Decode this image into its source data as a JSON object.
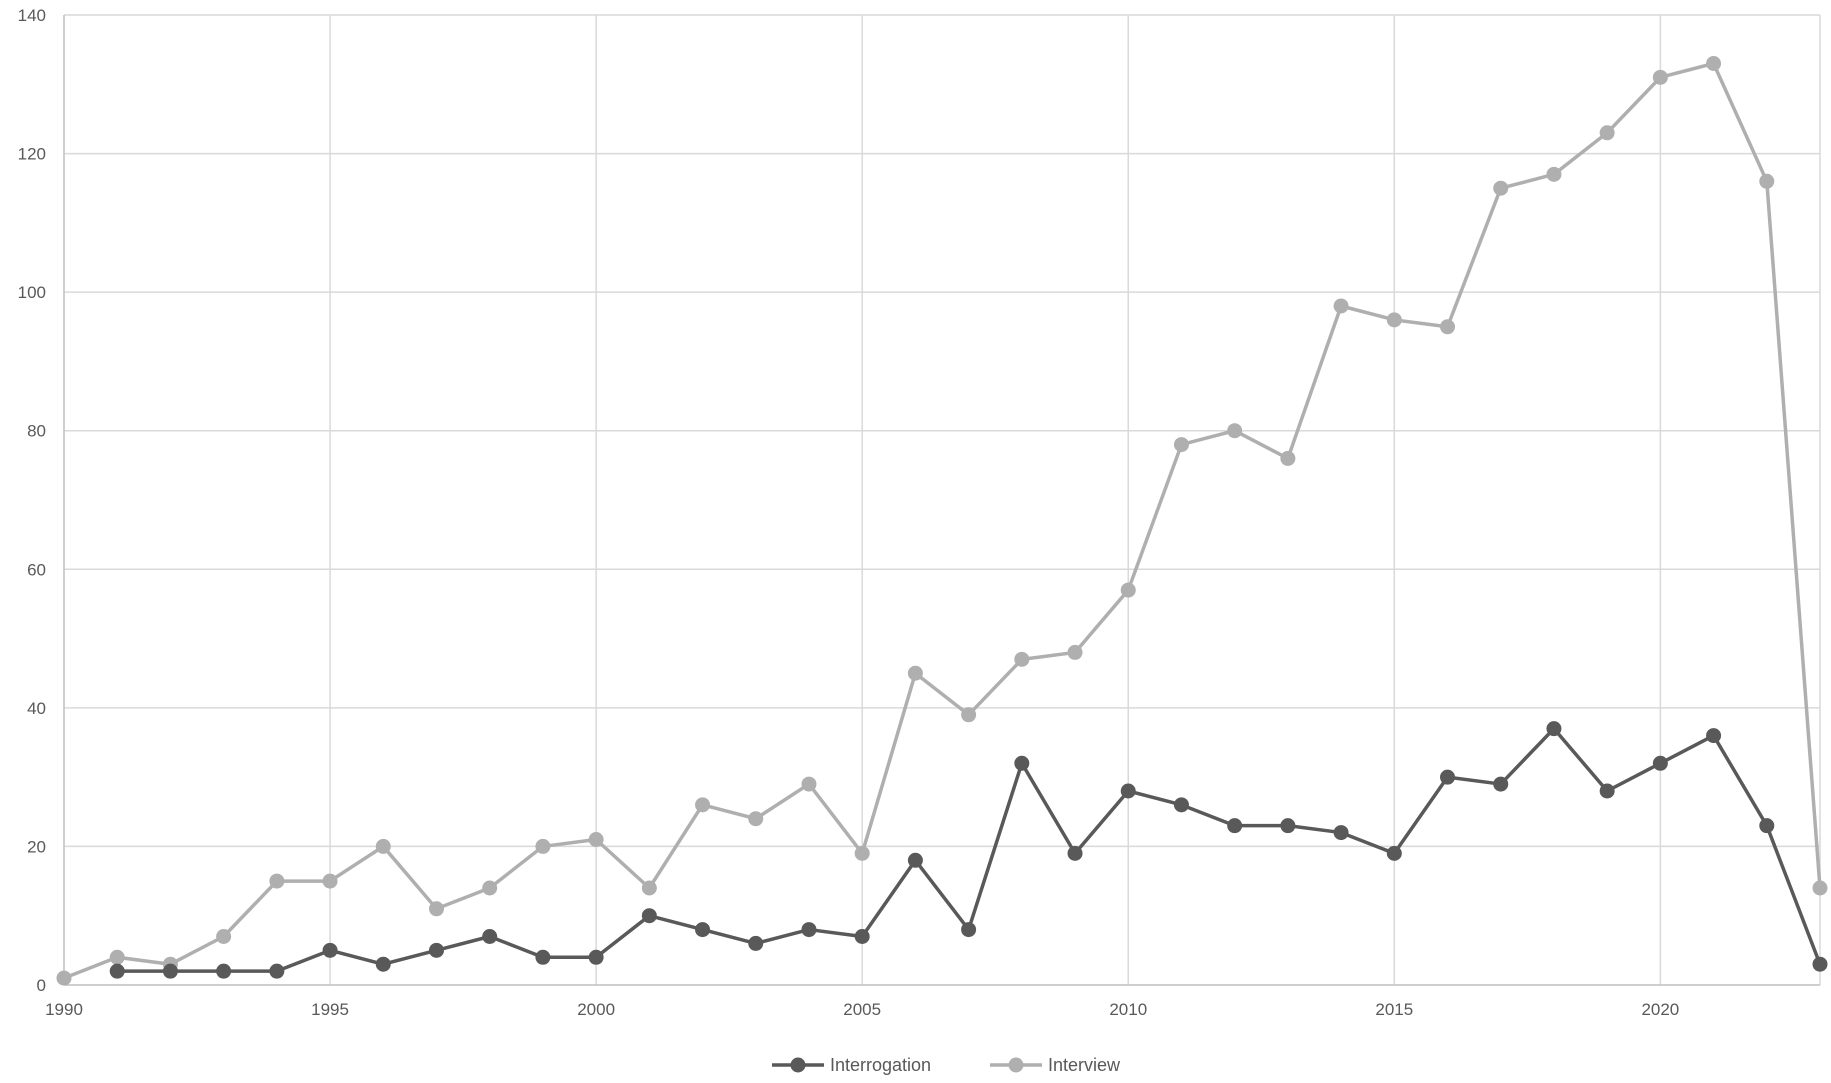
{
  "chart_data": {
    "type": "line",
    "title": "",
    "xlabel": "",
    "ylabel": "",
    "xlim": [
      1990,
      2023
    ],
    "ylim": [
      0,
      140
    ],
    "x_ticks": [
      1990,
      1995,
      2000,
      2005,
      2010,
      2015,
      2020
    ],
    "y_ticks": [
      0,
      20,
      40,
      60,
      80,
      100,
      120,
      140
    ],
    "grid": true,
    "legend_position": "bottom",
    "series": [
      {
        "name": "Interrogation",
        "color": "#595959",
        "x": [
          1991,
          1992,
          1993,
          1994,
          1995,
          1996,
          1997,
          1998,
          1999,
          2000,
          2001,
          2002,
          2003,
          2004,
          2005,
          2006,
          2007,
          2008,
          2009,
          2010,
          2011,
          2012,
          2013,
          2014,
          2015,
          2016,
          2017,
          2018,
          2019,
          2020,
          2021,
          2022,
          2023
        ],
        "values": [
          2,
          2,
          2,
          2,
          5,
          3,
          5,
          7,
          4,
          4,
          10,
          8,
          6,
          8,
          7,
          18,
          8,
          32,
          19,
          28,
          26,
          23,
          23,
          22,
          19,
          30,
          29,
          37,
          28,
          32,
          36,
          23,
          3
        ]
      },
      {
        "name": "Interview",
        "color": "#afafaf",
        "x": [
          1990,
          1991,
          1992,
          1993,
          1994,
          1995,
          1996,
          1997,
          1998,
          1999,
          2000,
          2001,
          2002,
          2003,
          2004,
          2005,
          2006,
          2007,
          2008,
          2009,
          2010,
          2011,
          2012,
          2013,
          2014,
          2015,
          2016,
          2017,
          2018,
          2019,
          2020,
          2021,
          2022,
          2023
        ],
        "values": [
          1,
          4,
          3,
          7,
          15,
          15,
          20,
          11,
          14,
          20,
          21,
          14,
          26,
          24,
          29,
          19,
          45,
          39,
          47,
          48,
          57,
          78,
          80,
          76,
          98,
          96,
          95,
          115,
          117,
          123,
          131,
          133,
          116,
          14
        ]
      }
    ]
  }
}
